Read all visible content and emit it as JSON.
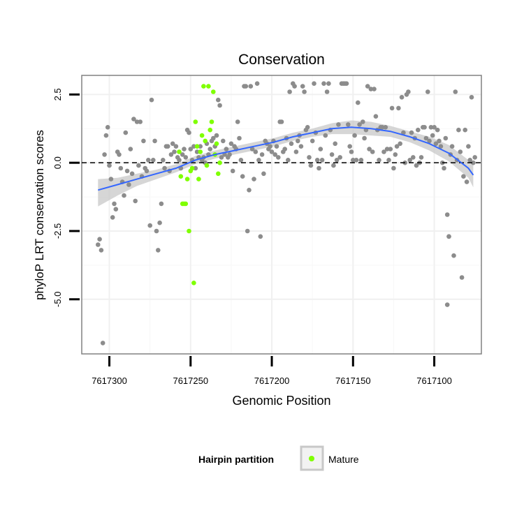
{
  "chart_data": {
    "type": "scatter",
    "title": "Conservation",
    "xlabel": "Genomic Position",
    "ylabel": "phyloP LRT conservation scores",
    "x_reversed": true,
    "xlim": [
      7617317,
      7617071
    ],
    "ylim": [
      -7.0,
      3.2
    ],
    "x_ticks": [
      7617300,
      7617250,
      7617200,
      7617150,
      7617100
    ],
    "x_tick_labels": [
      "7617300",
      "7617250",
      "7617200",
      "7617150",
      "7617100"
    ],
    "y_ticks": [
      2.5,
      0.0,
      -2.5,
      -5.0
    ],
    "y_tick_labels": [
      "2.5",
      "0.0",
      "-2.5",
      "-5.0"
    ],
    "reference_line": {
      "y": 0,
      "style": "dashed"
    },
    "grid": true,
    "legend": {
      "title": "Hairpin partition",
      "position": "bottom",
      "entries": [
        "Mature"
      ]
    },
    "colors": {
      "background_points": "#8c8c8c",
      "mature": "#7fff00",
      "smooth": "#3366ff",
      "band": "#c8c8c8",
      "panel_border": "#808080"
    },
    "series": [
      {
        "role": "other",
        "points": [
          [
            7617307,
            -3.0
          ],
          [
            7617306,
            -2.8
          ],
          [
            7617305,
            -3.2
          ],
          [
            7617304,
            -6.6
          ],
          [
            7617303,
            0.3
          ],
          [
            7617302,
            1.0
          ],
          [
            7617301,
            1.3
          ],
          [
            7617300,
            -0.1
          ],
          [
            7617299,
            -0.6
          ],
          [
            7617298,
            -2.0
          ],
          [
            7617297,
            -1.5
          ],
          [
            7617296,
            -1.7
          ],
          [
            7617295,
            0.4
          ],
          [
            7617294,
            0.3
          ],
          [
            7617293,
            -0.2
          ],
          [
            7617292,
            -0.7
          ],
          [
            7617291,
            -1.2
          ],
          [
            7617290,
            1.1
          ],
          [
            7617289,
            -0.3
          ],
          [
            7617288,
            -0.8
          ],
          [
            7617287,
            0.5
          ],
          [
            7617286,
            -0.4
          ],
          [
            7617285,
            1.6
          ],
          [
            7617284,
            -1.4
          ],
          [
            7617283,
            1.5
          ],
          [
            7617282,
            -0.1
          ],
          [
            7617281,
            1.5
          ],
          [
            7617280,
            -0.5
          ],
          [
            7617279,
            0.8
          ],
          [
            7617278,
            -0.2
          ],
          [
            7617277,
            -0.3
          ],
          [
            7617276,
            0.1
          ],
          [
            7617275,
            -2.3
          ],
          [
            7617274,
            2.3
          ],
          [
            7617273,
            0.1
          ],
          [
            7617272,
            0.8
          ],
          [
            7617271,
            -2.5
          ],
          [
            7617270,
            -3.2
          ],
          [
            7617269,
            -2.2
          ],
          [
            7617268,
            -1.5
          ],
          [
            7617267,
            0.1
          ],
          [
            7617266,
            -0.2
          ],
          [
            7617265,
            0.6
          ],
          [
            7617264,
            0.6
          ],
          [
            7617263,
            -0.3
          ],
          [
            7617262,
            0.3
          ],
          [
            7617261,
            0.7
          ],
          [
            7617260,
            0.4
          ],
          [
            7617259,
            0.6
          ],
          [
            7617258,
            0.2
          ],
          [
            7617257,
            0.1
          ],
          [
            7617256,
            -0.2
          ],
          [
            7617255,
            0.3
          ],
          [
            7617254,
            0.5
          ],
          [
            7617253,
            0.2
          ],
          [
            7617252,
            1.2
          ],
          [
            7617251,
            1.1
          ],
          [
            7617250,
            0.5
          ],
          [
            7617249,
            0.1
          ],
          [
            7617248,
            0.6
          ],
          [
            7617247,
            -0.2
          ],
          [
            7617246,
            0.4
          ],
          [
            7617245,
            0.2
          ],
          [
            7617244,
            0.6
          ],
          [
            7617243,
            0.1
          ],
          [
            7617242,
            0.2
          ],
          [
            7617241,
            0.0
          ],
          [
            7617240,
            0.7
          ],
          [
            7617239,
            0.3
          ],
          [
            7617238,
            0.5
          ],
          [
            7617237,
            0.8
          ],
          [
            7617236,
            0.9
          ],
          [
            7617235,
            0.6
          ],
          [
            7617234,
            1.0
          ],
          [
            7617233,
            2.3
          ],
          [
            7617232,
            2.1
          ],
          [
            7617231,
            0.2
          ],
          [
            7617230,
            0.8
          ],
          [
            7617229,
            0.3
          ],
          [
            7617228,
            0.5
          ],
          [
            7617227,
            0.2
          ],
          [
            7617226,
            0.3
          ],
          [
            7617225,
            0.7
          ],
          [
            7617224,
            -0.3
          ],
          [
            7617223,
            0.6
          ],
          [
            7617222,
            0.5
          ],
          [
            7617221,
            1.5
          ],
          [
            7617220,
            0.9
          ],
          [
            7617219,
            0.1
          ],
          [
            7617218,
            -0.5
          ],
          [
            7617217,
            2.8
          ],
          [
            7617216,
            2.8
          ],
          [
            7617215,
            -2.5
          ],
          [
            7617214,
            -1.0
          ],
          [
            7617213,
            2.8
          ],
          [
            7617212,
            0.5
          ],
          [
            7617211,
            -0.6
          ],
          [
            7617210,
            0.4
          ],
          [
            7617209,
            2.9
          ],
          [
            7617208,
            0.1
          ],
          [
            7617207,
            -2.7
          ],
          [
            7617206,
            0.3
          ],
          [
            7617205,
            -0.4
          ],
          [
            7617204,
            0.8
          ],
          [
            7617203,
            0.7
          ],
          [
            7617202,
            0.5
          ],
          [
            7617201,
            0.6
          ],
          [
            7617200,
            0.4
          ],
          [
            7617199,
            0.8
          ],
          [
            7617198,
            0.3
          ],
          [
            7617197,
            0.6
          ],
          [
            7617196,
            0.2
          ],
          [
            7617195,
            1.5
          ],
          [
            7617194,
            1.5
          ],
          [
            7617193,
            0.4
          ],
          [
            7617192,
            0.5
          ],
          [
            7617191,
            0.9
          ],
          [
            7617190,
            0.1
          ],
          [
            7617189,
            2.6
          ],
          [
            7617188,
            0.7
          ],
          [
            7617187,
            2.9
          ],
          [
            7617186,
            2.8
          ],
          [
            7617185,
            0.4
          ],
          [
            7617184,
            0.8
          ],
          [
            7617183,
            1.0
          ],
          [
            7617182,
            0.6
          ],
          [
            7617181,
            2.8
          ],
          [
            7617180,
            2.6
          ],
          [
            7617179,
            1.2
          ],
          [
            7617178,
            1.3
          ],
          [
            7617177,
            0.2
          ],
          [
            7617176,
            -0.1
          ],
          [
            7617175,
            0.8
          ],
          [
            7617174,
            2.9
          ],
          [
            7617173,
            1.1
          ],
          [
            7617172,
            0.1
          ],
          [
            7617171,
            -0.2
          ],
          [
            7617170,
            0.5
          ],
          [
            7617169,
            0.1
          ],
          [
            7617168,
            2.9
          ],
          [
            7617167,
            1.0
          ],
          [
            7617166,
            2.6
          ],
          [
            7617165,
            2.9
          ],
          [
            7617164,
            1.2
          ],
          [
            7617163,
            0.3
          ],
          [
            7617162,
            -0.1
          ],
          [
            7617161,
            0.7
          ],
          [
            7617160,
            0.1
          ],
          [
            7617159,
            1.4
          ],
          [
            7617158,
            0.2
          ],
          [
            7617157,
            2.9
          ],
          [
            7617156,
            2.9
          ],
          [
            7617155,
            2.9
          ],
          [
            7617154,
            2.9
          ],
          [
            7617153,
            1.4
          ],
          [
            7617152,
            0.6
          ],
          [
            7617151,
            0.4
          ],
          [
            7617150,
            0.1
          ],
          [
            7617149,
            1.0
          ],
          [
            7617148,
            0.1
          ],
          [
            7617147,
            2.2
          ],
          [
            7617146,
            1.4
          ],
          [
            7617145,
            0.1
          ],
          [
            7617144,
            1.5
          ],
          [
            7617143,
            0.9
          ],
          [
            7617142,
            1.2
          ],
          [
            7617141,
            2.8
          ],
          [
            7617140,
            0.5
          ],
          [
            7617139,
            2.7
          ],
          [
            7617138,
            0.4
          ],
          [
            7617137,
            2.7
          ],
          [
            7617136,
            1.7
          ],
          [
            7617135,
            1.2
          ],
          [
            7617134,
            0.1
          ],
          [
            7617133,
            1.3
          ],
          [
            7617132,
            1.3
          ],
          [
            7617131,
            0.4
          ],
          [
            7617130,
            1.3
          ],
          [
            7617129,
            0.5
          ],
          [
            7617128,
            0.1
          ],
          [
            7617127,
            0.5
          ],
          [
            7617126,
            2.0
          ],
          [
            7617125,
            -0.2
          ],
          [
            7617124,
            0.3
          ],
          [
            7617123,
            0.6
          ],
          [
            7617122,
            2.0
          ],
          [
            7617121,
            0.7
          ],
          [
            7617120,
            2.4
          ],
          [
            7617119,
            1.1
          ],
          [
            7617118,
            0.0
          ],
          [
            7617117,
            2.5
          ],
          [
            7617116,
            2.6
          ],
          [
            7617115,
            0.1
          ],
          [
            7617114,
            1.1
          ],
          [
            7617113,
            0.2
          ],
          [
            7617112,
            0.9
          ],
          [
            7617111,
            -0.1
          ],
          [
            7617110,
            1.2
          ],
          [
            7617109,
            0.0
          ],
          [
            7617108,
            0.2
          ],
          [
            7617107,
            1.3
          ],
          [
            7617106,
            1.3
          ],
          [
            7617105,
            0.9
          ],
          [
            7617104,
            2.6
          ],
          [
            7617103,
            0.8
          ],
          [
            7617102,
            1.3
          ],
          [
            7617101,
            1.0
          ],
          [
            7617100,
            1.3
          ],
          [
            7617099,
            0.7
          ],
          [
            7617098,
            1.2
          ],
          [
            7617097,
            0.8
          ],
          [
            7617096,
            0.6
          ],
          [
            7617095,
            0.0
          ],
          [
            7617094,
            -0.2
          ],
          [
            7617093,
            0.9
          ],
          [
            7617092,
            -1.9
          ],
          [
            7617091,
            -2.7
          ],
          [
            7617090,
            0.3
          ],
          [
            7617089,
            0.6
          ],
          [
            7617088,
            -3.4
          ],
          [
            7617087,
            2.6
          ],
          [
            7617086,
            0.1
          ],
          [
            7617085,
            1.2
          ],
          [
            7617084,
            0.4
          ],
          [
            7617083,
            -4.2
          ],
          [
            7617082,
            -0.5
          ],
          [
            7617081,
            1.2
          ],
          [
            7617080,
            -0.7
          ],
          [
            7617079,
            0.6
          ],
          [
            7617078,
            0.1
          ],
          [
            7617077,
            2.4
          ],
          [
            7617076,
            0.0
          ],
          [
            7617075,
            0.2
          ],
          [
            7617092,
            -5.2
          ],
          [
            7617091,
            -2.7
          ]
        ]
      },
      {
        "role": "mature",
        "name": "Mature",
        "points": [
          [
            7617257,
            0.4
          ],
          [
            7617256,
            -0.5
          ],
          [
            7617255,
            -1.5
          ],
          [
            7617254,
            -1.5
          ],
          [
            7617253,
            -1.5
          ],
          [
            7617252,
            -0.6
          ],
          [
            7617251,
            -2.5
          ],
          [
            7617250,
            -0.3
          ],
          [
            7617249,
            -0.2
          ],
          [
            7617248,
            -4.4
          ],
          [
            7617247,
            1.5
          ],
          [
            7617246,
            0.6
          ],
          [
            7617245,
            -0.6
          ],
          [
            7617244,
            0.4
          ],
          [
            7617243,
            1.0
          ],
          [
            7617242,
            2.8
          ],
          [
            7617241,
            0.8
          ],
          [
            7617240,
            -0.1
          ],
          [
            7617239,
            2.8
          ],
          [
            7617238,
            1.2
          ],
          [
            7617237,
            1.5
          ],
          [
            7617236,
            2.6
          ],
          [
            7617235,
            0.3
          ],
          [
            7617234,
            0.7
          ],
          [
            7617233,
            -0.4
          ],
          [
            7617232,
            0.0
          ]
        ]
      }
    ],
    "smooth": {
      "x": [
        7617307,
        7617295,
        7617283,
        7617271,
        7617259,
        7617247,
        7617235,
        7617223,
        7617211,
        7617199,
        7617187,
        7617175,
        7617163,
        7617151,
        7617139,
        7617127,
        7617115,
        7617103,
        7617091,
        7617079,
        7617076
      ],
      "y": [
        -1.0,
        -0.8,
        -0.6,
        -0.4,
        -0.2,
        0.1,
        0.3,
        0.45,
        0.6,
        0.75,
        0.95,
        1.1,
        1.25,
        1.3,
        1.25,
        1.15,
        0.95,
        0.7,
        0.35,
        -0.2,
        -0.45
      ],
      "band_upper": [
        -0.6,
        -0.55,
        -0.4,
        -0.25,
        -0.05,
        0.25,
        0.45,
        0.6,
        0.75,
        0.9,
        1.1,
        1.25,
        1.45,
        1.55,
        1.5,
        1.35,
        1.15,
        0.95,
        0.65,
        0.1,
        -0.05
      ],
      "band_lower": [
        -1.6,
        -1.2,
        -0.85,
        -0.6,
        -0.35,
        -0.05,
        0.15,
        0.3,
        0.45,
        0.6,
        0.8,
        0.95,
        1.05,
        1.05,
        1.0,
        0.95,
        0.75,
        0.45,
        0.05,
        -0.55,
        -0.9
      ]
    }
  }
}
